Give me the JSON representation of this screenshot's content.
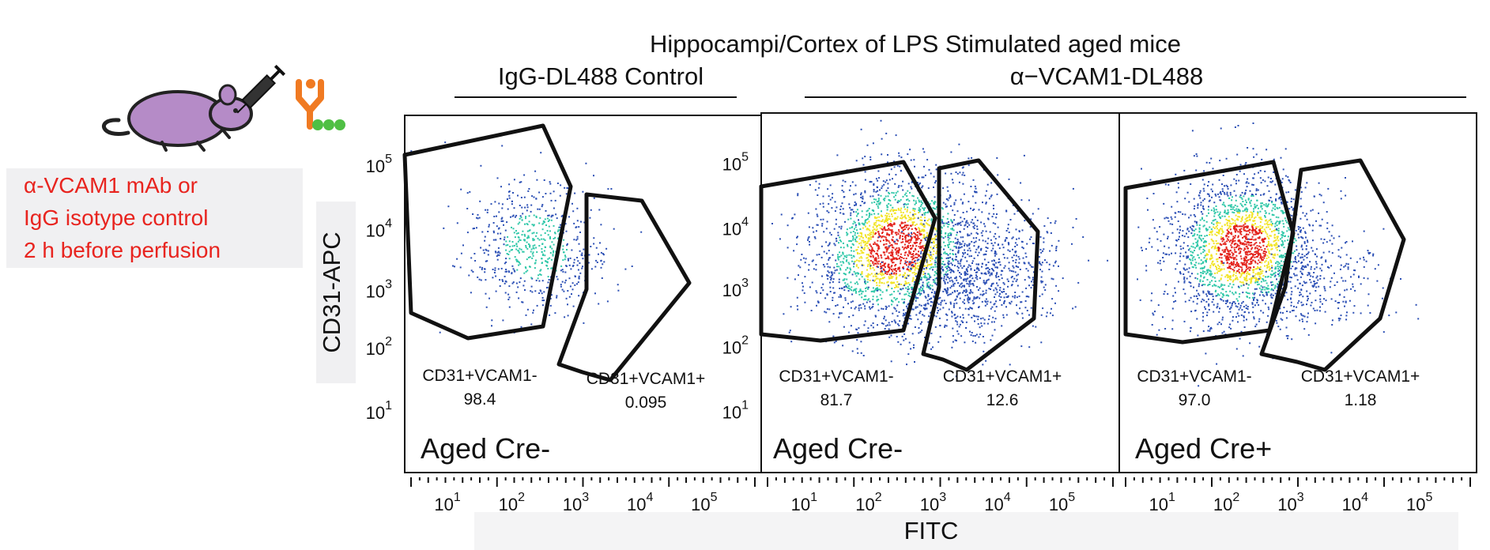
{
  "title": "Hippocampi/Cortex of LPS Stimulated aged mice",
  "groups": {
    "control": "IgG-DL488 Control",
    "vcam": "α−VCAM1-DL488"
  },
  "injection_note": {
    "line1": "α-VCAM1 mAb or",
    "line2": "IgG isotype control",
    "line3": "2 h before perfusion",
    "color": "#e8241f"
  },
  "icons": [
    "mouse-icon",
    "syringe-icon",
    "antibody-icon"
  ],
  "axes": {
    "y_label": "CD31-APC",
    "x_label": "FITC",
    "y_ticks": [
      {
        "base": "10",
        "exp": "5"
      },
      {
        "base": "10",
        "exp": "4"
      },
      {
        "base": "10",
        "exp": "3"
      },
      {
        "base": "10",
        "exp": "2"
      },
      {
        "base": "10",
        "exp": "1"
      }
    ],
    "x_ticks": [
      {
        "base": "10",
        "exp": "1"
      },
      {
        "base": "10",
        "exp": "2"
      },
      {
        "base": "10",
        "exp": "3"
      },
      {
        "base": "10",
        "exp": "4"
      },
      {
        "base": "10",
        "exp": "5"
      }
    ]
  },
  "panels": [
    {
      "sample": "Aged Cre-",
      "gate_neg_name": "CD31+VCAM1-",
      "gate_neg_value": "98.4",
      "gate_pos_name": "CD31+VCAM1+",
      "gate_pos_value": "0.095"
    },
    {
      "sample": "Aged Cre-",
      "gate_neg_name": "CD31+VCAM1-",
      "gate_neg_value": "81.7",
      "gate_pos_name": "CD31+VCAM1+",
      "gate_pos_value": "12.6"
    },
    {
      "sample": "Aged Cre+",
      "gate_neg_name": "CD31+VCAM1-",
      "gate_neg_value": "97.0",
      "gate_pos_name": "CD31+VCAM1+",
      "gate_pos_value": "1.18"
    }
  ],
  "colors": {
    "density_low": "#2b4fb5",
    "density_mid": "#2fc7a8",
    "density_high": "#f2e427",
    "density_peak": "#e3241d",
    "mouse": "#b58bc7",
    "antibody_stem": "#f07a22",
    "antibody_dots": "#4fbf44"
  }
}
